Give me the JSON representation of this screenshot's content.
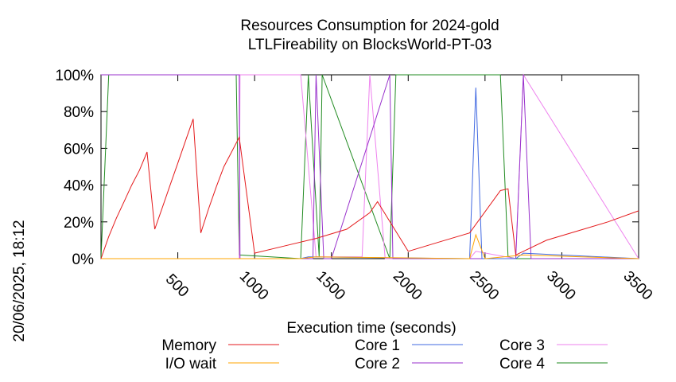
{
  "chart_data": {
    "type": "line",
    "title": [
      "Resources Consumption for 2024-gold",
      "LTLFireability on BlocksWorld-PT-03"
    ],
    "xlabel": "Execution time (seconds)",
    "ylabel": "",
    "side_label": "20/06/2025, 18:12",
    "xlim": [
      0,
      3500
    ],
    "ylim": [
      0,
      100
    ],
    "x_ticks": [
      500,
      1000,
      1500,
      2000,
      2500,
      3000,
      3500
    ],
    "y_ticks": [
      0,
      20,
      40,
      60,
      80,
      100
    ],
    "y_tick_labels": [
      "0%",
      "20%",
      "40%",
      "60%",
      "80%",
      "100%"
    ],
    "grid": false,
    "legend_position": "bottom",
    "series": [
      {
        "name": "Memory",
        "color": "#e41a1c",
        "x": [
          0,
          50,
          100,
          150,
          200,
          250,
          300,
          350,
          400,
          450,
          500,
          550,
          600,
          650,
          700,
          750,
          800,
          850,
          900,
          1000,
          1200,
          1400,
          1600,
          1750,
          1800,
          2000,
          2200,
          2400,
          2600,
          2650,
          2700,
          2900,
          3100,
          3300,
          3500
        ],
        "y": [
          0,
          12,
          22,
          31,
          40,
          48,
          58,
          16,
          28,
          40,
          52,
          64,
          76,
          14,
          27,
          39,
          50,
          58,
          66,
          3,
          7,
          11,
          16,
          25,
          31,
          4,
          9,
          14,
          37,
          38,
          2,
          10,
          15,
          20,
          26
        ]
      },
      {
        "name": "I/O wait",
        "color": "#ffa500",
        "x": [
          0,
          1300,
          1400,
          2400,
          2440,
          2500,
          2750,
          3500
        ],
        "y": [
          0,
          0,
          1,
          0,
          13,
          0,
          2,
          0
        ]
      },
      {
        "name": "Core 1",
        "color": "#4169e1",
        "x": [
          0,
          890,
          900,
          1300,
          1350,
          2400,
          2440,
          2480,
          2700,
          2750,
          3500
        ],
        "y": [
          0,
          0,
          0,
          0,
          1,
          0,
          93,
          0,
          0,
          3,
          0
        ]
      },
      {
        "name": "Core 2",
        "color": "#9932cc",
        "x": [
          0,
          900,
          905,
          1380,
          1400,
          1450,
          1500,
          1880,
          1900,
          2700,
          2750,
          2800,
          3500
        ],
        "y": [
          100,
          100,
          0,
          0,
          100,
          0,
          0,
          100,
          0,
          0,
          100,
          0,
          0
        ]
      },
      {
        "name": "Core 3",
        "color": "#ee82ee",
        "x": [
          0,
          900,
          905,
          1300,
          1400,
          1700,
          1750,
          1850,
          2400,
          2440,
          2700,
          2750,
          3500
        ],
        "y": [
          0,
          0,
          100,
          100,
          1,
          1,
          100,
          0,
          0,
          4,
          0,
          100,
          0
        ]
      },
      {
        "name": "Core 4",
        "color": "#228b22",
        "x": [
          0,
          50,
          880,
          900,
          1300,
          1350,
          1420,
          1440,
          1880,
          1920,
          2600,
          2650,
          2700,
          3500
        ],
        "y": [
          0,
          100,
          100,
          2,
          0,
          100,
          1,
          100,
          0,
          100,
          100,
          1,
          0,
          0
        ]
      }
    ]
  }
}
